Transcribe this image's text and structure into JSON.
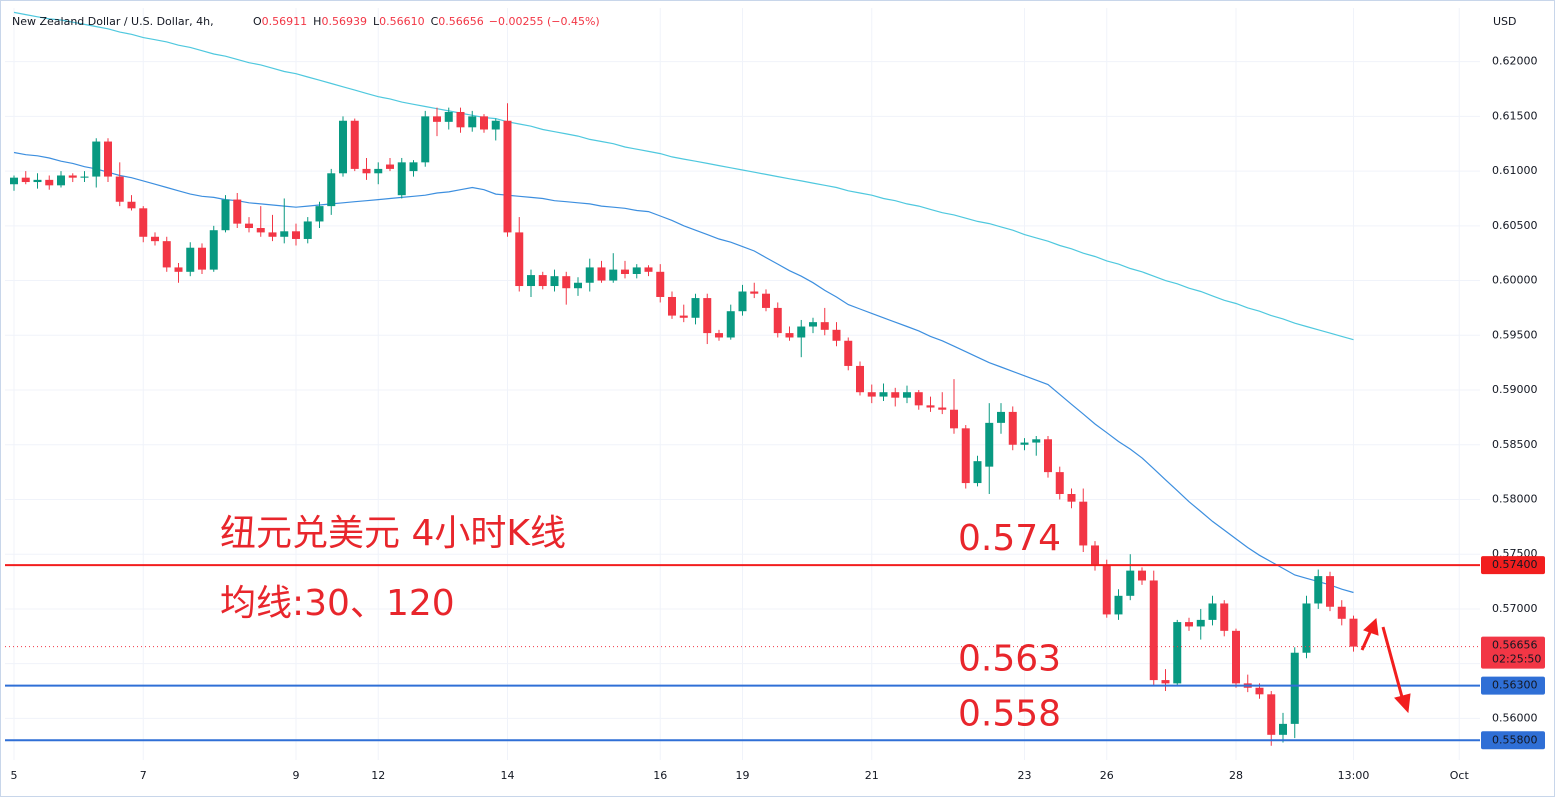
{
  "chart_data": {
    "type": "candlestick",
    "title": "New Zealand Dollar / U.S. Dollar, 4h,",
    "ohlc_legend": [
      {
        "key": "O",
        "value": "0.56911"
      },
      {
        "key": "H",
        "value": "0.56939"
      },
      {
        "key": "L",
        "value": "0.56610"
      },
      {
        "key": "C",
        "value": "0.56656"
      }
    ],
    "change": "−0.00255 (−0.45%)",
    "currency": "USD",
    "up_color": "#089981",
    "down_color": "#f23645",
    "grid": true,
    "ylim": [
      0.5562,
      0.6249
    ],
    "yticks": [
      {
        "value": 0.62,
        "label": "0.62000"
      },
      {
        "value": 0.615,
        "label": "0.61500"
      },
      {
        "value": 0.61,
        "label": "0.61000"
      },
      {
        "value": 0.605,
        "label": "0.60500"
      },
      {
        "value": 0.6,
        "label": "0.60000"
      },
      {
        "value": 0.595,
        "label": "0.59500"
      },
      {
        "value": 0.59,
        "label": "0.59000"
      },
      {
        "value": 0.585,
        "label": "0.58500"
      },
      {
        "value": 0.58,
        "label": "0.58000"
      },
      {
        "value": 0.575,
        "label": "0.57500"
      },
      {
        "value": 0.57,
        "label": "0.57000"
      },
      {
        "value": 0.565,
        "label": "0.56500"
      },
      {
        "value": 0.56,
        "label": "0.56000"
      }
    ],
    "categories": [
      "5",
      null,
      null,
      null,
      null,
      null,
      null,
      null,
      null,
      null,
      null,
      "7",
      null,
      null,
      null,
      null,
      null,
      null,
      null,
      null,
      null,
      null,
      null,
      null,
      "9",
      null,
      null,
      null,
      null,
      null,
      null,
      "12",
      null,
      null,
      null,
      null,
      null,
      null,
      null,
      null,
      null,
      null,
      "14",
      null,
      null,
      null,
      null,
      null,
      null,
      null,
      null,
      null,
      null,
      null,
      null,
      "16",
      null,
      null,
      null,
      null,
      null,
      null,
      "19",
      null,
      null,
      null,
      null,
      null,
      null,
      null,
      null,
      null,
      null,
      "21",
      null,
      null,
      null,
      null,
      null,
      null,
      null,
      null,
      null,
      null,
      null,
      null,
      "23",
      null,
      null,
      null,
      null,
      null,
      null,
      "26",
      null,
      null,
      null,
      null,
      null,
      null,
      null,
      null,
      null,
      null,
      "28",
      null,
      null,
      null,
      null,
      null,
      null,
      null,
      null,
      null,
      "13:00",
      null,
      null,
      null,
      null,
      null,
      null,
      null,
      null,
      "Oct"
    ],
    "values": [
      [
        0.6088,
        0.6096,
        0.6082,
        0.6094
      ],
      [
        0.6094,
        0.61,
        0.6088,
        0.609
      ],
      [
        0.609,
        0.6098,
        0.6084,
        0.6092
      ],
      [
        0.6092,
        0.6096,
        0.6083,
        0.6087
      ],
      [
        0.6087,
        0.61,
        0.6085,
        0.6096
      ],
      [
        0.6096,
        0.6098,
        0.609,
        0.6094
      ],
      [
        0.6094,
        0.61,
        0.609,
        0.6095
      ],
      [
        0.6095,
        0.613,
        0.6085,
        0.6127
      ],
      [
        0.6127,
        0.613,
        0.609,
        0.6095
      ],
      [
        0.6095,
        0.6108,
        0.6068,
        0.6072
      ],
      [
        0.6072,
        0.6078,
        0.6064,
        0.6066
      ],
      [
        0.6066,
        0.6068,
        0.6035,
        0.604
      ],
      [
        0.604,
        0.6044,
        0.6032,
        0.6036
      ],
      [
        0.6036,
        0.604,
        0.6008,
        0.6012
      ],
      [
        0.6012,
        0.6016,
        0.5998,
        0.6008
      ],
      [
        0.6008,
        0.6035,
        0.6004,
        0.603
      ],
      [
        0.603,
        0.6034,
        0.6006,
        0.601
      ],
      [
        0.601,
        0.605,
        0.6008,
        0.6046
      ],
      [
        0.6046,
        0.6078,
        0.6044,
        0.6074
      ],
      [
        0.6074,
        0.608,
        0.6048,
        0.6052
      ],
      [
        0.6052,
        0.6058,
        0.6044,
        0.6048
      ],
      [
        0.6048,
        0.6068,
        0.604,
        0.6044
      ],
      [
        0.6044,
        0.606,
        0.6036,
        0.604
      ],
      [
        0.604,
        0.6075,
        0.6034,
        0.6045
      ],
      [
        0.6045,
        0.6052,
        0.6032,
        0.6038
      ],
      [
        0.6038,
        0.6058,
        0.6034,
        0.6054
      ],
      [
        0.6054,
        0.6072,
        0.6048,
        0.6068
      ],
      [
        0.6068,
        0.6102,
        0.606,
        0.6098
      ],
      [
        0.6098,
        0.615,
        0.6095,
        0.6146
      ],
      [
        0.6146,
        0.6148,
        0.61,
        0.6102
      ],
      [
        0.6102,
        0.6112,
        0.6092,
        0.6098
      ],
      [
        0.6098,
        0.6108,
        0.6088,
        0.6102
      ],
      [
        0.6106,
        0.6112,
        0.61,
        0.6102
      ],
      [
        0.6078,
        0.6112,
        0.6075,
        0.6108
      ],
      [
        0.61,
        0.611,
        0.6095,
        0.6108
      ],
      [
        0.6108,
        0.6155,
        0.6104,
        0.615
      ],
      [
        0.615,
        0.6158,
        0.6132,
        0.6145
      ],
      [
        0.6145,
        0.6158,
        0.6138,
        0.6154
      ],
      [
        0.6154,
        0.6158,
        0.6135,
        0.614
      ],
      [
        0.614,
        0.6155,
        0.6136,
        0.615
      ],
      [
        0.615,
        0.6152,
        0.6135,
        0.6138
      ],
      [
        0.6138,
        0.6148,
        0.6128,
        0.6146
      ],
      [
        0.6146,
        0.6162,
        0.604,
        0.6044
      ],
      [
        0.6044,
        0.6058,
        0.599,
        0.5995
      ],
      [
        0.5995,
        0.601,
        0.5985,
        0.6005
      ],
      [
        0.6005,
        0.6008,
        0.5992,
        0.5995
      ],
      [
        0.5995,
        0.601,
        0.599,
        0.6004
      ],
      [
        0.6004,
        0.6008,
        0.5978,
        0.5993
      ],
      [
        0.5993,
        0.6003,
        0.5986,
        0.5998
      ],
      [
        0.5998,
        0.602,
        0.599,
        0.6012
      ],
      [
        0.6012,
        0.6018,
        0.5998,
        0.6
      ],
      [
        0.6,
        0.6025,
        0.5998,
        0.601
      ],
      [
        0.601,
        0.6018,
        0.6002,
        0.6006
      ],
      [
        0.6006,
        0.6015,
        0.6002,
        0.6012
      ],
      [
        0.6012,
        0.6014,
        0.6004,
        0.6008
      ],
      [
        0.6008,
        0.6015,
        0.598,
        0.5985
      ],
      [
        0.5985,
        0.599,
        0.5965,
        0.5968
      ],
      [
        0.5968,
        0.5978,
        0.5962,
        0.5966
      ],
      [
        0.5966,
        0.5988,
        0.596,
        0.5984
      ],
      [
        0.5984,
        0.5988,
        0.5942,
        0.5952
      ],
      [
        0.5952,
        0.5955,
        0.5945,
        0.5948
      ],
      [
        0.5948,
        0.5978,
        0.5946,
        0.5972
      ],
      [
        0.5972,
        0.5996,
        0.5968,
        0.599
      ],
      [
        0.599,
        0.5998,
        0.5984,
        0.5988
      ],
      [
        0.5988,
        0.5992,
        0.5972,
        0.5975
      ],
      [
        0.5975,
        0.598,
        0.5948,
        0.5952
      ],
      [
        0.5952,
        0.5958,
        0.5945,
        0.5948
      ],
      [
        0.5948,
        0.5964,
        0.593,
        0.5958
      ],
      [
        0.5958,
        0.5966,
        0.5952,
        0.5962
      ],
      [
        0.5962,
        0.5975,
        0.595,
        0.5955
      ],
      [
        0.5955,
        0.5962,
        0.594,
        0.5945
      ],
      [
        0.5945,
        0.5948,
        0.5918,
        0.5922
      ],
      [
        0.5922,
        0.5926,
        0.5895,
        0.5898
      ],
      [
        0.5898,
        0.5905,
        0.5888,
        0.5894
      ],
      [
        0.5894,
        0.5906,
        0.589,
        0.5898
      ],
      [
        0.5898,
        0.5902,
        0.5885,
        0.5893
      ],
      [
        0.5893,
        0.5904,
        0.5888,
        0.5898
      ],
      [
        0.5898,
        0.59,
        0.5882,
        0.5886
      ],
      [
        0.5886,
        0.5894,
        0.588,
        0.5884
      ],
      [
        0.5884,
        0.5898,
        0.5878,
        0.5882
      ],
      [
        0.5882,
        0.591,
        0.586,
        0.5865
      ],
      [
        0.5865,
        0.5868,
        0.581,
        0.5815
      ],
      [
        0.5815,
        0.584,
        0.5812,
        0.5835
      ],
      [
        0.583,
        0.5888,
        0.5805,
        0.587
      ],
      [
        0.587,
        0.5888,
        0.586,
        0.588
      ],
      [
        0.588,
        0.5885,
        0.5845,
        0.585
      ],
      [
        0.585,
        0.5856,
        0.5845,
        0.5852
      ],
      [
        0.5852,
        0.5858,
        0.584,
        0.5855
      ],
      [
        0.5855,
        0.5858,
        0.582,
        0.5825
      ],
      [
        0.5825,
        0.583,
        0.58,
        0.5805
      ],
      [
        0.5805,
        0.581,
        0.5792,
        0.5798
      ],
      [
        0.5798,
        0.581,
        0.5752,
        0.5758
      ],
      [
        0.5758,
        0.5762,
        0.5735,
        0.574
      ],
      [
        0.574,
        0.5745,
        0.5692,
        0.5695
      ],
      [
        0.5695,
        0.5718,
        0.569,
        0.5712
      ],
      [
        0.5712,
        0.575,
        0.5708,
        0.5735
      ],
      [
        0.5735,
        0.5738,
        0.5722,
        0.5726
      ],
      [
        0.5726,
        0.5735,
        0.563,
        0.5635
      ],
      [
        0.5635,
        0.5645,
        0.5625,
        0.5632
      ],
      [
        0.5632,
        0.569,
        0.563,
        0.5688
      ],
      [
        0.5688,
        0.5692,
        0.568,
        0.5684
      ],
      [
        0.5684,
        0.57,
        0.5672,
        0.569
      ],
      [
        0.569,
        0.5712,
        0.5685,
        0.5705
      ],
      [
        0.5705,
        0.5708,
        0.5675,
        0.568
      ],
      [
        0.568,
        0.5682,
        0.5628,
        0.5632
      ],
      [
        0.5632,
        0.564,
        0.5624,
        0.5628
      ],
      [
        0.5628,
        0.5632,
        0.5618,
        0.5622
      ],
      [
        0.5622,
        0.5625,
        0.5575,
        0.5585
      ],
      [
        0.5585,
        0.5605,
        0.5578,
        0.5595
      ],
      [
        0.5595,
        0.5665,
        0.5582,
        0.566
      ],
      [
        0.566,
        0.5712,
        0.5655,
        0.5705
      ],
      [
        0.5705,
        0.5736,
        0.57,
        0.573
      ],
      [
        0.573,
        0.5734,
        0.5698,
        0.5702
      ],
      [
        0.5702,
        0.5708,
        0.5685,
        0.5691
      ],
      [
        0.56911,
        0.56939,
        0.5661,
        0.56656
      ],
      null,
      null,
      null,
      null,
      null,
      null,
      null,
      null,
      null
    ],
    "series": [
      {
        "color": "#3d8fdf",
        "values": [
          0.6117,
          0.6115,
          0.6114,
          0.6112,
          0.6109,
          0.6107,
          0.6104,
          0.6102,
          0.6099,
          0.6096,
          0.6094,
          0.6091,
          0.6088,
          0.6085,
          0.6082,
          0.6079,
          0.6077,
          0.6076,
          0.6074,
          0.6073,
          0.6071,
          0.607,
          0.6069,
          0.6068,
          0.6067,
          0.6068,
          0.6069,
          0.607,
          0.6071,
          0.6072,
          0.6073,
          0.6074,
          0.6075,
          0.6076,
          0.6077,
          0.6078,
          0.608,
          0.6081,
          0.6083,
          0.6085,
          0.6083,
          0.6079,
          0.6078,
          0.6077,
          0.6076,
          0.6075,
          0.6073,
          0.6072,
          0.6071,
          0.607,
          0.6068,
          0.6067,
          0.6066,
          0.6064,
          0.6063,
          0.6059,
          0.6055,
          0.605,
          0.6046,
          0.6042,
          0.6038,
          0.6035,
          0.6031,
          0.6027,
          0.6021,
          0.6015,
          0.6009,
          0.6004,
          0.5998,
          0.5991,
          0.5985,
          0.5978,
          0.5974,
          0.597,
          0.5966,
          0.5962,
          0.5958,
          0.5954,
          0.5949,
          0.5945,
          0.594,
          0.5935,
          0.593,
          0.5925,
          0.5921,
          0.5917,
          0.5913,
          0.5909,
          0.5905,
          0.5896,
          0.5887,
          0.5878,
          0.5869,
          0.5861,
          0.5853,
          0.5846,
          0.5838,
          0.5828,
          0.5818,
          0.5808,
          0.5798,
          0.5789,
          0.578,
          0.5772,
          0.5764,
          0.5756,
          0.5749,
          0.5743,
          0.5737,
          0.5731,
          0.5728,
          0.5725,
          0.5722,
          0.5718,
          0.5715,
          null,
          null,
          null,
          null,
          null,
          null,
          null,
          null,
          null
        ]
      },
      {
        "color": "#4fc8de",
        "values": [
          0.6245,
          0.6243,
          0.6241,
          0.6239,
          0.6238,
          0.6236,
          0.6234,
          0.6232,
          0.623,
          0.6227,
          0.6225,
          0.6222,
          0.622,
          0.6218,
          0.6215,
          0.6213,
          0.621,
          0.6207,
          0.6205,
          0.6202,
          0.6199,
          0.6197,
          0.6194,
          0.6191,
          0.6189,
          0.6186,
          0.6183,
          0.618,
          0.6177,
          0.6174,
          0.6171,
          0.6168,
          0.6166,
          0.6163,
          0.6161,
          0.6159,
          0.6157,
          0.6155,
          0.6153,
          0.6151,
          0.6149,
          0.6148,
          0.6145,
          0.6143,
          0.6141,
          0.6138,
          0.6136,
          0.6134,
          0.6132,
          0.6129,
          0.6127,
          0.6125,
          0.6122,
          0.612,
          0.6118,
          0.6116,
          0.6113,
          0.6111,
          0.6109,
          0.6107,
          0.6105,
          0.6103,
          0.6101,
          0.6099,
          0.6097,
          0.6095,
          0.6093,
          0.6091,
          0.6089,
          0.6087,
          0.6085,
          0.6082,
          0.608,
          0.6078,
          0.6075,
          0.6073,
          0.607,
          0.6068,
          0.6065,
          0.6062,
          0.606,
          0.6057,
          0.6054,
          0.6052,
          0.6049,
          0.6046,
          0.6042,
          0.6039,
          0.6036,
          0.6032,
          0.6029,
          0.6025,
          0.6022,
          0.6018,
          0.6015,
          0.6011,
          0.6008,
          0.6004,
          0.6,
          0.5997,
          0.5993,
          0.599,
          0.5986,
          0.5982,
          0.5979,
          0.5975,
          0.5972,
          0.5968,
          0.5965,
          0.5961,
          0.5958,
          0.5955,
          0.5952,
          0.5949,
          0.5946,
          null,
          null,
          null,
          null,
          null,
          null,
          null,
          null,
          null
        ]
      }
    ],
    "hlines": [
      {
        "value": 0.574,
        "label": "0.57400",
        "color": "#f21e1e",
        "annotation": "0.574"
      },
      {
        "value": 0.563,
        "label": "0.56300",
        "color": "#2f6fd6",
        "annotation": "0.563"
      },
      {
        "value": 0.558,
        "label": "0.55800",
        "color": "#2f6fd6",
        "annotation": "0.558"
      }
    ],
    "last_price": {
      "value": 0.56656,
      "label": "0.56656",
      "countdown": "02:25:50",
      "color": "#f23645"
    },
    "annotations": [
      "纽元兑美元 4小时K线",
      "均线:30、120"
    ]
  }
}
